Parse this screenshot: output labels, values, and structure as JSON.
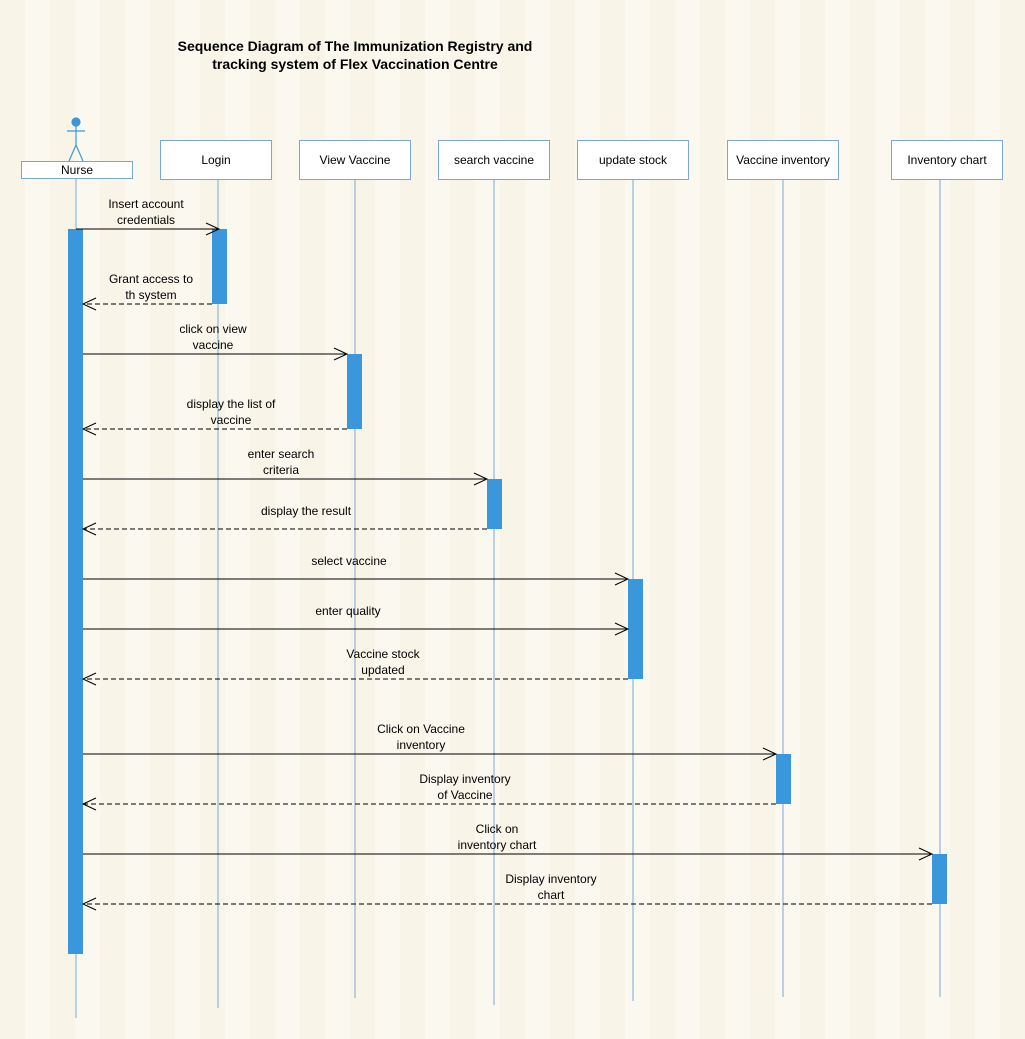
{
  "title": {
    "line1": "Sequence Diagram of The Immunization Registry and",
    "line2": "tracking system of Flex Vaccination Centre"
  },
  "participants": [
    {
      "id": "nurse",
      "label": "Nurse",
      "kind": "actor"
    },
    {
      "id": "login",
      "label": "Login",
      "kind": "object"
    },
    {
      "id": "view",
      "label": "View Vaccine",
      "kind": "object"
    },
    {
      "id": "search",
      "label": "search vaccine",
      "kind": "object"
    },
    {
      "id": "update",
      "label": "update stock",
      "kind": "object"
    },
    {
      "id": "inventory",
      "label": "Vaccine inventory",
      "kind": "object"
    },
    {
      "id": "chart",
      "label": "Inventory chart",
      "kind": "object"
    }
  ],
  "messages": [
    {
      "from": "nurse",
      "to": "login",
      "type": "sync",
      "lines": [
        "Insert account",
        "credentials"
      ]
    },
    {
      "from": "login",
      "to": "nurse",
      "type": "return",
      "lines": [
        "Grant access to",
        "th system"
      ]
    },
    {
      "from": "nurse",
      "to": "view",
      "type": "sync",
      "lines": [
        "click on view",
        "vaccine"
      ]
    },
    {
      "from": "view",
      "to": "nurse",
      "type": "return",
      "lines": [
        "display the list of",
        "vaccine"
      ]
    },
    {
      "from": "nurse",
      "to": "search",
      "type": "sync",
      "lines": [
        "enter search",
        "criteria"
      ]
    },
    {
      "from": "search",
      "to": "nurse",
      "type": "return",
      "lines": [
        "display the result"
      ]
    },
    {
      "from": "nurse",
      "to": "update",
      "type": "sync",
      "lines": [
        "select vaccine"
      ]
    },
    {
      "from": "nurse",
      "to": "update",
      "type": "sync",
      "lines": [
        "enter quality"
      ]
    },
    {
      "from": "update",
      "to": "nurse",
      "type": "return",
      "lines": [
        "Vaccine stock",
        "updated"
      ]
    },
    {
      "from": "nurse",
      "to": "inventory",
      "type": "sync",
      "lines": [
        "Click on Vaccine",
        "inventory"
      ]
    },
    {
      "from": "inventory",
      "to": "nurse",
      "type": "return",
      "lines": [
        "Display inventory",
        "of Vaccine"
      ]
    },
    {
      "from": "nurse",
      "to": "chart",
      "type": "sync",
      "lines": [
        "Click on",
        "inventory chart"
      ]
    },
    {
      "from": "chart",
      "to": "nurse",
      "type": "return",
      "lines": [
        "Display inventory",
        "chart"
      ]
    }
  ],
  "colors": {
    "activation": "#3a97dc",
    "lifeline": "#7aa7d8",
    "box_border": "#7aa7d8",
    "actor": "#3a97dc",
    "arrow": "#000000"
  }
}
